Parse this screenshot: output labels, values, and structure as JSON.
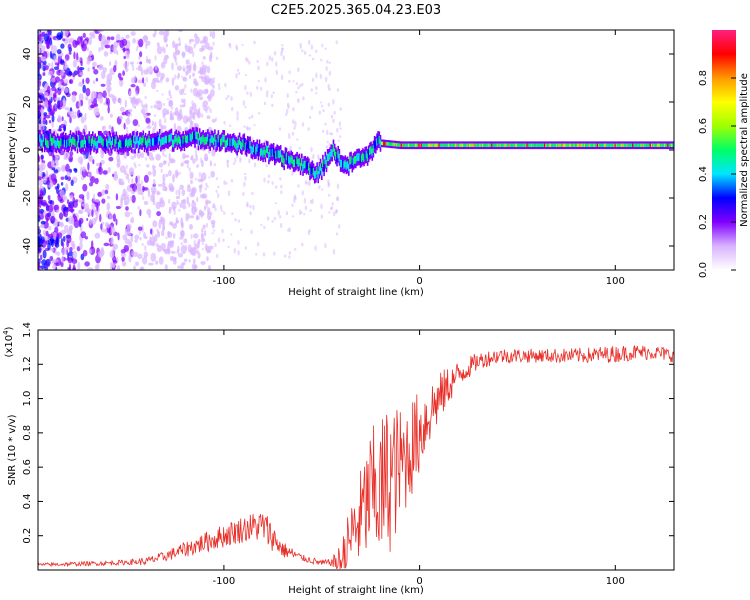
{
  "title": "C2E5.2025.365.04.23.E03",
  "chart_data": [
    {
      "type": "heatmap",
      "name": "spectrogram",
      "xlabel": "Height of straight line (km)",
      "ylabel": "Frequency (Hz)",
      "xlim": [
        -195,
        130
      ],
      "ylim": [
        -50,
        50
      ],
      "xticks": [
        -100,
        0,
        100
      ],
      "yticks": [
        -40,
        -20,
        0,
        20,
        40
      ],
      "ridge": {
        "x": [
          -195,
          -170,
          -150,
          -130,
          -110,
          -90,
          -75,
          -60,
          -52,
          -45,
          -38,
          -33,
          -28,
          -22,
          -10,
          0,
          20,
          50,
          80,
          110,
          130
        ],
        "y": [
          4,
          3,
          3,
          4,
          5,
          2,
          -2,
          -6,
          -10,
          0,
          -7,
          -4,
          -3,
          3,
          2,
          2,
          2,
          2,
          2,
          2,
          2
        ]
      },
      "colorbar": {
        "label": "Normalized spectral amplitude",
        "range": [
          0,
          1
        ],
        "ticks": [
          0.0,
          0.2,
          0.4,
          0.6,
          0.8
        ],
        "tick_labels": [
          "0.0",
          "0.2",
          "0.4",
          "0.6",
          "0.8"
        ],
        "stops": [
          "#ffffff",
          "#d9b3ff",
          "#8000ff",
          "#0000ff",
          "#00e5ff",
          "#00ff66",
          "#a0ff00",
          "#ffff00",
          "#ff9900",
          "#ff0000",
          "#ff2080"
        ]
      }
    },
    {
      "type": "line",
      "name": "snr",
      "xlabel": "Height of straight line (km)",
      "ylabel": "SNR (10 * v/v)",
      "yscale_label": "(x10",
      "yscale_exp": "4",
      "xlim": [
        -195,
        130
      ],
      "ylim": [
        0,
        1.4
      ],
      "xticks": [
        -100,
        0,
        100
      ],
      "yticks": [
        0.2,
        0.4,
        0.6,
        0.8,
        1.0,
        1.2,
        1.4
      ],
      "ytick_labels": [
        "0.2",
        "0.4",
        "0.6",
        "0.8",
        "1.0",
        "1.2",
        "1.4"
      ],
      "color": "#e8302a",
      "trend": {
        "x": [
          -195,
          -160,
          -140,
          -130,
          -120,
          -110,
          -100,
          -90,
          -80,
          -70,
          -60,
          -50,
          -40,
          -35,
          -30,
          -25,
          -20,
          -15,
          -10,
          -5,
          0,
          5,
          10,
          15,
          20,
          25,
          30,
          40,
          60,
          80,
          100,
          110,
          120,
          130
        ],
        "y": [
          0.03,
          0.04,
          0.05,
          0.08,
          0.12,
          0.16,
          0.2,
          0.24,
          0.26,
          0.12,
          0.07,
          0.04,
          0.05,
          0.2,
          0.3,
          0.45,
          0.45,
          0.55,
          0.6,
          0.7,
          0.8,
          0.92,
          1.0,
          1.08,
          1.14,
          1.18,
          1.22,
          1.25,
          1.25,
          1.25,
          1.26,
          1.27,
          1.27,
          1.25
        ]
      },
      "noise": {
        "x": [
          -195,
          -150,
          -130,
          -110,
          -90,
          -78,
          -70,
          -60,
          -45,
          -38,
          -30,
          -20,
          -15,
          -10,
          0,
          10,
          20,
          30,
          60,
          100,
          130
        ],
        "amp": [
          0.01,
          0.015,
          0.03,
          0.06,
          0.08,
          0.1,
          0.05,
          0.02,
          0.02,
          0.15,
          0.3,
          0.45,
          0.45,
          0.35,
          0.25,
          0.15,
          0.08,
          0.05,
          0.04,
          0.05,
          0.04
        ]
      }
    }
  ]
}
